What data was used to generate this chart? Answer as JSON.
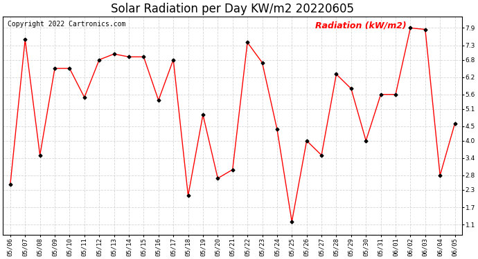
{
  "title": "Solar Radiation per Day KW/m2 20220605",
  "copyright_text": "Copyright 2022 Cartronics.com",
  "legend_label": "Radiation (kW/m2)",
  "dates": [
    "05/06",
    "05/07",
    "05/08",
    "05/09",
    "05/10",
    "05/11",
    "05/12",
    "05/13",
    "05/14",
    "05/15",
    "05/16",
    "05/17",
    "05/18",
    "05/19",
    "05/20",
    "05/21",
    "05/22",
    "05/23",
    "05/24",
    "05/25",
    "05/26",
    "05/27",
    "05/28",
    "05/29",
    "05/30",
    "05/31",
    "06/01",
    "06/02",
    "06/03",
    "06/04",
    "06/05"
  ],
  "values": [
    2.5,
    7.5,
    3.5,
    6.5,
    6.5,
    5.5,
    6.8,
    7.0,
    6.9,
    6.9,
    5.4,
    6.8,
    2.1,
    4.9,
    2.7,
    3.0,
    7.4,
    6.7,
    4.4,
    1.2,
    4.0,
    3.5,
    6.3,
    5.8,
    4.0,
    5.6,
    5.6,
    7.9,
    7.85,
    2.8,
    4.6
  ],
  "line_color": "red",
  "marker": "D",
  "marker_size": 2.5,
  "marker_color": "black",
  "grid_color": "#cccccc",
  "background_color": "#ffffff",
  "yticks": [
    1.1,
    1.7,
    2.3,
    2.8,
    3.4,
    4.0,
    4.5,
    5.1,
    5.6,
    6.2,
    6.8,
    7.3,
    7.9
  ],
  "ylim": [
    0.75,
    8.3
  ],
  "title_fontsize": 12,
  "copyright_fontsize": 7,
  "legend_fontsize": 9,
  "tick_fontsize": 6.5,
  "linewidth": 1.0
}
